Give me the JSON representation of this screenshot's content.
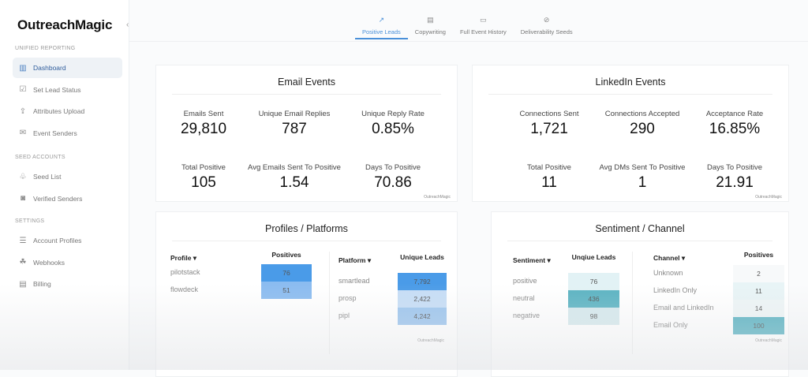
{
  "app": {
    "logo": "OutreachMagic"
  },
  "sidebar": {
    "sections": [
      {
        "title": "UNIFIED REPORTING",
        "items": [
          {
            "label": "Dashboard",
            "icon": "bar-chart-icon"
          },
          {
            "label": "Set Lead Status",
            "icon": "edit-icon"
          },
          {
            "label": "Attributes Upload",
            "icon": "upload-icon"
          },
          {
            "label": "Event Senders",
            "icon": "mail-icon"
          }
        ]
      },
      {
        "title": "SEED ACCOUNTS",
        "items": [
          {
            "label": "Seed List",
            "icon": "seedling-icon"
          },
          {
            "label": "Verified Senders",
            "icon": "badge-icon"
          }
        ]
      },
      {
        "title": "SETTINGS",
        "items": [
          {
            "label": "Account Profiles",
            "icon": "server-icon"
          },
          {
            "label": "Webhooks",
            "icon": "webhook-icon"
          },
          {
            "label": "Billing",
            "icon": "receipt-icon"
          }
        ]
      }
    ]
  },
  "tabs": [
    {
      "label": "Positive Leads",
      "icon": "trend-icon",
      "active": true
    },
    {
      "label": "Copywriting",
      "icon": "document-icon"
    },
    {
      "label": "Full Event History",
      "icon": "folder-icon"
    },
    {
      "label": "Deliverability Seeds",
      "icon": "check-circle-icon"
    }
  ],
  "email": {
    "title": "Email Events",
    "metrics": [
      {
        "label": "Emails Sent",
        "value": "29,810"
      },
      {
        "label": "Unique Email Replies",
        "value": "787"
      },
      {
        "label": "Unique Reply Rate",
        "value": "0.85%"
      },
      {
        "label": "Total Positive",
        "value": "105"
      },
      {
        "label": "Avg Emails Sent To Positive",
        "value": "1.54"
      },
      {
        "label": "Days To Positive",
        "value": "70.86"
      }
    ]
  },
  "linkedin": {
    "title": "LinkedIn Events",
    "metrics": [
      {
        "label": "Connections Sent",
        "value": "1,721"
      },
      {
        "label": "Connections Accepted",
        "value": "290"
      },
      {
        "label": "Acceptance Rate",
        "value": "16.85%"
      },
      {
        "label": "Total Positive",
        "value": "11"
      },
      {
        "label": "Avg DMs Sent To Positive",
        "value": "1"
      },
      {
        "label": "Days To Positive",
        "value": "21.91"
      }
    ]
  },
  "profiles": {
    "title": "Profiles / Platforms",
    "profile_table": {
      "col1": "Profile ▾",
      "col2": "Positives",
      "rows": [
        {
          "name": "pilotstack",
          "value": "76",
          "color": "#4a9be8"
        },
        {
          "name": "flowdeck",
          "value": "51",
          "color": "#8bbcf0"
        }
      ]
    },
    "platform_table": {
      "col1": "Platform ▾",
      "col2": "Unique Leads",
      "rows": [
        {
          "name": "smartlead",
          "value": "7,792",
          "color": "#4a9be8"
        },
        {
          "name": "prosp",
          "value": "2,422",
          "color": "#c6ddf6"
        },
        {
          "name": "pipl",
          "value": "4,242",
          "color": "#9cc5ee"
        }
      ]
    }
  },
  "sentiment": {
    "title": "Sentiment / Channel",
    "sentiment_table": {
      "col1": "Sentiment ▾",
      "col2": "Unqiue Leads",
      "rows": [
        {
          "name": "positive",
          "value": "76",
          "color": "#e2f2f5"
        },
        {
          "name": "neutral",
          "value": "436",
          "color": "#5bb3c2"
        },
        {
          "name": "negative",
          "value": "98",
          "color": "#d6e9ed"
        }
      ]
    },
    "channel_table": {
      "col1": "Channel ▾",
      "col2": "Positives",
      "rows": [
        {
          "name": "Unknown",
          "value": "2",
          "color": "#f7f9fa"
        },
        {
          "name": "LinkedIn Only",
          "value": "11",
          "color": "#e8f4f6"
        },
        {
          "name": "Email and LinkedIn",
          "value": "14",
          "color": "#eef5f6"
        },
        {
          "name": "Email Only",
          "value": "100",
          "color": "#5bb3c2"
        }
      ]
    }
  }
}
